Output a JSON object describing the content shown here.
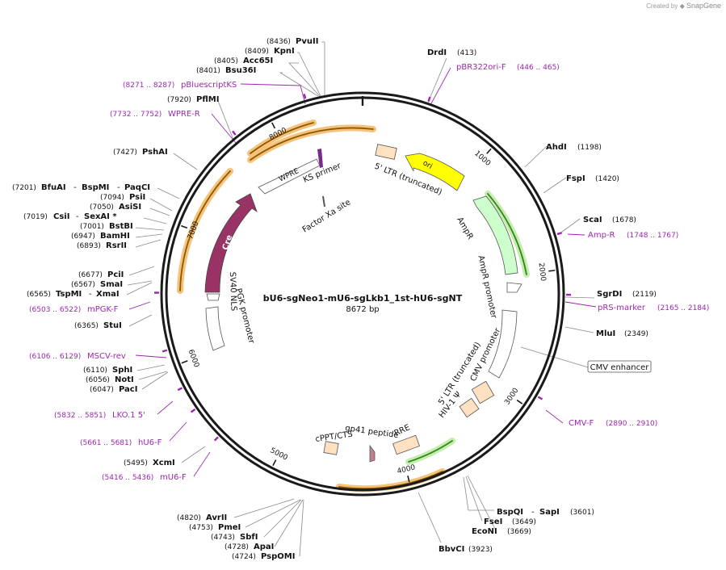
{
  "header": {
    "created_by": "Created by",
    "brand": "SnapGene"
  },
  "plasmid": {
    "name": "bU6-sgNeo1-mU6-sgLkb1_1st-hU6-sgNT",
    "length_label": "8672 bp",
    "length": 8672
  },
  "ticks": [
    {
      "bp": 1000,
      "label": "1000"
    },
    {
      "bp": 2000,
      "label": "2000"
    },
    {
      "bp": 3000,
      "label": "3000"
    },
    {
      "bp": 4000,
      "label": "4000"
    },
    {
      "bp": 5000,
      "label": "5000"
    },
    {
      "bp": 6000,
      "label": "6000"
    },
    {
      "bp": 7000,
      "label": "7000"
    },
    {
      "bp": 8000,
      "label": "8000"
    }
  ],
  "enzymes": [
    {
      "name": "PvuII",
      "pos": "(8436)"
    },
    {
      "name": "KpnI",
      "pos": "(8409)"
    },
    {
      "name": "Acc65I",
      "pos": "(8405)"
    },
    {
      "name": "Bsu36I",
      "pos": "(8401)"
    },
    {
      "name": "PflMI",
      "pos": "(7920)"
    },
    {
      "name": "PshAI",
      "pos": "(7427)"
    },
    {
      "name": "BfuAI",
      "pos": "(7201)"
    },
    {
      "name": "BspMI",
      "pos": ""
    },
    {
      "name": "PaqCI",
      "pos": ""
    },
    {
      "name": "PsiI",
      "pos": "(7094)"
    },
    {
      "name": "AsiSI",
      "pos": "(7050)"
    },
    {
      "name": "CsiI",
      "pos": "(7019)"
    },
    {
      "name": "SexAI *",
      "pos": ""
    },
    {
      "name": "BstBI",
      "pos": "(7001)"
    },
    {
      "name": "BamHI",
      "pos": "(6947)"
    },
    {
      "name": "RsrII",
      "pos": "(6893)"
    },
    {
      "name": "PciI",
      "pos": "(6677)"
    },
    {
      "name": "SmaI",
      "pos": "(6567)"
    },
    {
      "name": "TspMI",
      "pos": "(6565)"
    },
    {
      "name": "XmaI",
      "pos": ""
    },
    {
      "name": "StuI",
      "pos": "(6365)"
    },
    {
      "name": "SphI",
      "pos": "(6110)"
    },
    {
      "name": "NotI",
      "pos": "(6056)"
    },
    {
      "name": "PacI",
      "pos": "(6047)"
    },
    {
      "name": "XcmI",
      "pos": "(5495)"
    },
    {
      "name": "AvrII",
      "pos": "(4820)"
    },
    {
      "name": "PmeI",
      "pos": "(4753)"
    },
    {
      "name": "SbfI",
      "pos": "(4743)"
    },
    {
      "name": "ApaI",
      "pos": "(4728)"
    },
    {
      "name": "PspOMI",
      "pos": "(4724)"
    },
    {
      "name": "BbvCI",
      "pos": "(3923)"
    },
    {
      "name": "EcoNI",
      "pos": "(3669)"
    },
    {
      "name": "FseI",
      "pos": "(3649)"
    },
    {
      "name": "BspQI",
      "pos": ""
    },
    {
      "name": "SapI",
      "pos": "(3601)"
    },
    {
      "name": "MluI",
      "pos": "(2349)"
    },
    {
      "name": "SgrDI",
      "pos": "(2119)"
    },
    {
      "name": "ScaI",
      "pos": "(1678)"
    },
    {
      "name": "FspI",
      "pos": "(1420)"
    },
    {
      "name": "AhdI",
      "pos": "(1198)"
    },
    {
      "name": "DrdI",
      "pos": "(413)"
    }
  ],
  "primers": [
    {
      "name": "pBR322ori-F",
      "range": "(446 .. 465)",
      "bp": 455
    },
    {
      "name": "pBluescriptKS",
      "range": "(8271 .. 8287)",
      "bp": 8279
    },
    {
      "name": "WPRE-R",
      "range": "(7732 .. 7752)",
      "bp": 7742
    },
    {
      "name": "mPGK-F",
      "range": "(6503 .. 6522)",
      "bp": 6512
    },
    {
      "name": "MSCV-rev",
      "range": "(6106 .. 6129)",
      "bp": 6117
    },
    {
      "name": "LKO.1 5'",
      "range": "(5832 .. 5851)",
      "bp": 5841
    },
    {
      "name": "hU6-F",
      "range": "(5661 .. 5681)",
      "bp": 5671
    },
    {
      "name": "mU6-F",
      "range": "(5416 .. 5436)",
      "bp": 5426
    },
    {
      "name": "Amp-R",
      "range": "(1748 .. 1767)",
      "bp": 1757
    },
    {
      "name": "pRS-marker",
      "range": "(2165 .. 2184)",
      "bp": 2174
    },
    {
      "name": "CMV-F",
      "range": "(2890 .. 2910)",
      "bp": 2900
    }
  ],
  "features": {
    "ori": "ori",
    "ampr": "AmpR",
    "ampr_promoter": "AmpR promoter",
    "ltr5_top": "5' LTR (truncated)",
    "ks_primer": "KS primer",
    "wpre": "WPRE",
    "factor_xa": "Factor Xa site",
    "cre": "Cre",
    "sv40_nls": "SV40 NLS",
    "pgk_promoter": "PGK promoter",
    "cmv_promoter": "CMV promoter",
    "cmv_enhancer": "CMV enhancer",
    "ltr5_bottom": "5' LTR (truncated)",
    "hiv_psi": "HIV-1 Ψ",
    "rre": "RRE",
    "gp41": "gp41 peptide",
    "cppt": "cPPT/CTS"
  },
  "colors": {
    "backbone": "#1a1a1a",
    "primer": "#9c27b0",
    "ori": "#ffff00",
    "ampr": "#ccffcc",
    "cre": "#993366",
    "misc_feature": "#ffe0c0",
    "orf_highlight": "#f6c27a",
    "orf_green": "#2f8a1c"
  }
}
